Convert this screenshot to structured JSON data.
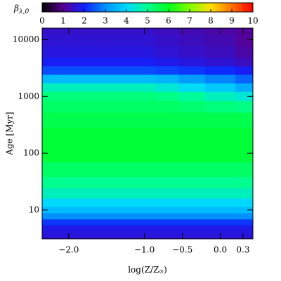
{
  "chart_data": {
    "type": "heatmap",
    "colorbar_label": {
      "symbol": "β",
      "subscript": "λ,0"
    },
    "y_label": "Age [Myr]",
    "x_label": {
      "text": "log(Z/Z",
      "subscript": "⊙",
      "end": ")"
    },
    "clim": [
      0,
      10
    ],
    "colorbar_ticks": [
      0,
      1,
      2,
      3,
      4,
      5,
      6,
      7,
      8,
      9,
      10
    ],
    "colorscale": [
      "#000000",
      "#5a0090",
      "#1020ff",
      "#0090ff",
      "#00d8ff",
      "#00ff90",
      "#00ff20",
      "#80ff00",
      "#ffe000",
      "#ff7000",
      "#ff0000"
    ],
    "xlim": [
      -2.35,
      0.43
    ],
    "xticks": [
      {
        "value": -2,
        "label": "−2.0"
      },
      {
        "value": -1,
        "label": "−1.0"
      },
      {
        "value": -0.5,
        "label": "−0.5"
      },
      {
        "value": 0,
        "label": "0.0"
      },
      0.3
    ],
    "ylim": [
      3.1,
      16000
    ],
    "yscale": "log",
    "yticks": [
      10,
      100,
      1000,
      10000
    ],
    "x": [
      -2.3,
      -1.8,
      -1.3,
      -1.0,
      -0.7,
      -0.4,
      0.0,
      0.4
    ],
    "y": [
      3.2,
      4,
      5,
      6,
      8,
      10,
      13,
      20,
      30,
      50,
      100,
      200,
      400,
      700,
      1000,
      1500,
      2000,
      3000,
      4000,
      6000,
      10000,
      15000
    ],
    "z": [
      [
        1.6,
        1.6,
        1.6,
        1.6,
        1.6,
        1.6,
        1.6,
        1.6
      ],
      [
        1.7,
        1.7,
        1.7,
        1.7,
        1.7,
        1.7,
        1.7,
        1.7
      ],
      [
        1.8,
        1.8,
        1.8,
        1.8,
        1.8,
        1.8,
        1.8,
        1.8
      ],
      [
        2.2,
        2.2,
        2.2,
        2.2,
        2.2,
        2.2,
        2.2,
        2.2
      ],
      [
        3.0,
        3.0,
        3.0,
        3.0,
        3.0,
        3.0,
        3.0,
        3.0
      ],
      [
        3.6,
        3.6,
        3.6,
        3.6,
        3.6,
        3.6,
        3.6,
        3.6
      ],
      [
        4.0,
        4.0,
        4.0,
        4.0,
        4.0,
        4.0,
        4.0,
        4.0
      ],
      [
        4.6,
        4.6,
        4.6,
        4.6,
        4.6,
        4.6,
        4.6,
        4.6
      ],
      [
        5.0,
        5.0,
        5.0,
        5.0,
        5.0,
        5.0,
        5.0,
        5.0
      ],
      [
        5.4,
        5.4,
        5.4,
        5.4,
        5.4,
        5.4,
        5.4,
        5.4
      ],
      [
        5.8,
        5.8,
        5.8,
        5.8,
        5.8,
        5.8,
        5.8,
        5.8
      ],
      [
        5.8,
        5.8,
        5.8,
        5.8,
        5.8,
        5.8,
        5.8,
        5.8
      ],
      [
        5.6,
        5.6,
        5.6,
        5.6,
        5.6,
        5.6,
        5.6,
        5.6
      ],
      [
        5.4,
        5.4,
        5.4,
        5.4,
        5.4,
        5.3,
        5.2,
        5.1
      ],
      [
        5.2,
        5.2,
        5.2,
        5.2,
        5.1,
        4.9,
        4.6,
        4.4
      ],
      [
        4.6,
        4.6,
        4.6,
        4.6,
        4.4,
        4.1,
        3.8,
        3.4
      ],
      [
        3.6,
        3.6,
        3.6,
        3.6,
        3.5,
        3.2,
        2.9,
        2.6
      ],
      [
        2.4,
        2.4,
        2.4,
        2.4,
        2.3,
        2.2,
        2.1,
        1.9
      ],
      [
        1.9,
        1.9,
        1.9,
        1.9,
        1.8,
        1.7,
        1.6,
        1.4
      ],
      [
        1.7,
        1.7,
        1.7,
        1.7,
        1.6,
        1.5,
        1.4,
        1.2
      ],
      [
        1.6,
        1.6,
        1.6,
        1.6,
        1.5,
        1.4,
        1.3,
        1.1
      ],
      [
        1.5,
        1.5,
        1.5,
        1.5,
        1.4,
        1.3,
        1.2,
        1.1
      ]
    ]
  }
}
